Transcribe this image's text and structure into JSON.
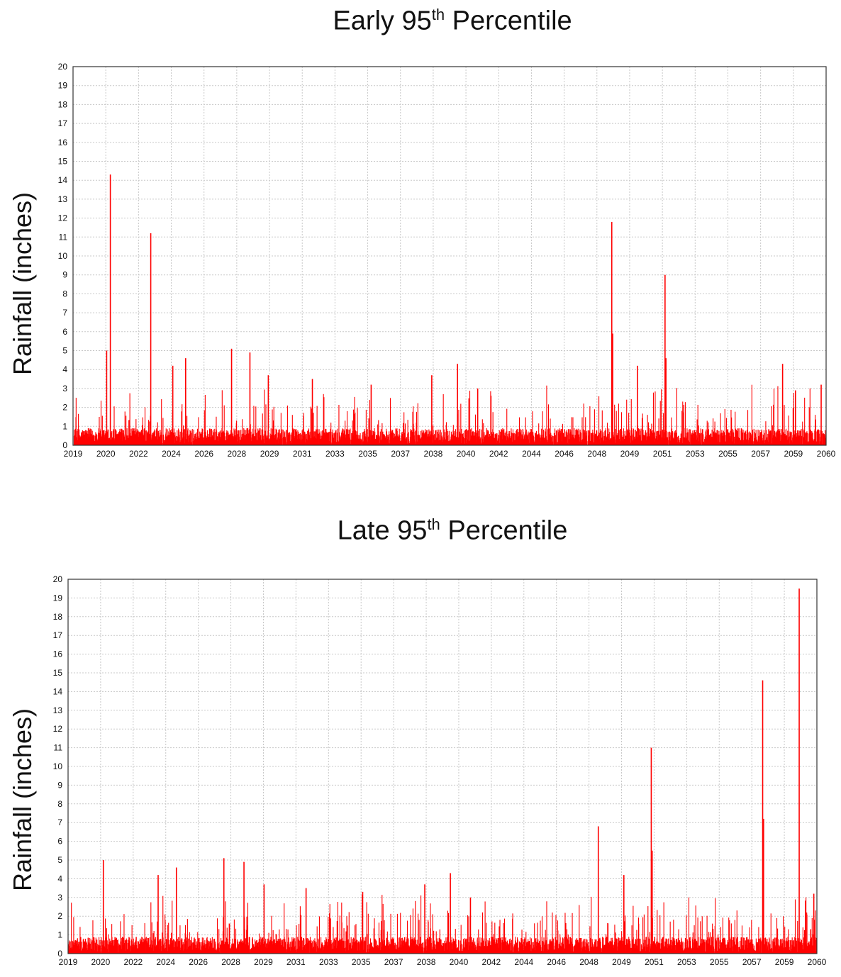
{
  "chart_data": [
    {
      "type": "bar",
      "title": "Early 95",
      "title_suffix": "th",
      "title_rest": " Percentile",
      "ylabel": "Rainfall (inches)",
      "xlabel": "",
      "ylim": [
        0,
        20
      ],
      "yticks": [
        0,
        1,
        2,
        3,
        4,
        5,
        6,
        7,
        8,
        9,
        10,
        11,
        12,
        13,
        14,
        15,
        16,
        17,
        18,
        19,
        20
      ],
      "xticks": [
        "2019",
        "2020",
        "2022",
        "2024",
        "2026",
        "2028",
        "2029",
        "2031",
        "2033",
        "2035",
        "2037",
        "2038",
        "2040",
        "2042",
        "2044",
        "2046",
        "2048",
        "2049",
        "2051",
        "2053",
        "2055",
        "2057",
        "2059",
        "2060"
      ],
      "xlim": [
        2019,
        2060
      ],
      "grid": true,
      "color": "#ff0000",
      "peaks": [
        {
          "x": 2020.8,
          "y": 5.0
        },
        {
          "x": 2021.0,
          "y": 14.3
        },
        {
          "x": 2023.2,
          "y": 11.2
        },
        {
          "x": 2024.4,
          "y": 4.2
        },
        {
          "x": 2025.1,
          "y": 4.6
        },
        {
          "x": 2027.6,
          "y": 5.1
        },
        {
          "x": 2028.6,
          "y": 4.9
        },
        {
          "x": 2029.6,
          "y": 3.7
        },
        {
          "x": 2032.0,
          "y": 3.5
        },
        {
          "x": 2035.2,
          "y": 3.2
        },
        {
          "x": 2038.5,
          "y": 3.7
        },
        {
          "x": 2039.9,
          "y": 4.3
        },
        {
          "x": 2041.0,
          "y": 3.0
        },
        {
          "x": 2048.3,
          "y": 11.8
        },
        {
          "x": 2048.35,
          "y": 5.9
        },
        {
          "x": 2049.7,
          "y": 4.2
        },
        {
          "x": 2051.2,
          "y": 9.0
        },
        {
          "x": 2051.25,
          "y": 4.6
        },
        {
          "x": 2057.6,
          "y": 4.3
        },
        {
          "x": 2058.3,
          "y": 2.9
        },
        {
          "x": 2059.7,
          "y": 3.2
        }
      ]
    },
    {
      "type": "bar",
      "title": "Late 95",
      "title_suffix": "th",
      "title_rest": " Percentile",
      "ylabel": "Rainfall (inches)",
      "xlabel": "",
      "ylim": [
        0,
        20
      ],
      "yticks": [
        0,
        1,
        2,
        3,
        4,
        5,
        6,
        7,
        8,
        9,
        10,
        11,
        12,
        13,
        14,
        15,
        16,
        17,
        18,
        19,
        20
      ],
      "xticks": [
        "2019",
        "2020",
        "2022",
        "2024",
        "2026",
        "2028",
        "2029",
        "2031",
        "2033",
        "2035",
        "2037",
        "2038",
        "2040",
        "2042",
        "2044",
        "2046",
        "2048",
        "2049",
        "2051",
        "2053",
        "2055",
        "2057",
        "2059",
        "2060"
      ],
      "xlim": [
        2019,
        2060
      ],
      "grid": true,
      "color": "#ff0000",
      "peaks": [
        {
          "x": 2020.9,
          "y": 5.0
        },
        {
          "x": 2023.9,
          "y": 4.2
        },
        {
          "x": 2024.9,
          "y": 4.6
        },
        {
          "x": 2027.5,
          "y": 5.1
        },
        {
          "x": 2028.6,
          "y": 4.9
        },
        {
          "x": 2029.7,
          "y": 3.7
        },
        {
          "x": 2032.0,
          "y": 3.5
        },
        {
          "x": 2035.1,
          "y": 3.3
        },
        {
          "x": 2038.5,
          "y": 3.7
        },
        {
          "x": 2039.9,
          "y": 4.3
        },
        {
          "x": 2041.0,
          "y": 3.0
        },
        {
          "x": 2048.0,
          "y": 6.8
        },
        {
          "x": 2049.4,
          "y": 4.2
        },
        {
          "x": 2050.9,
          "y": 11.0
        },
        {
          "x": 2050.95,
          "y": 5.5
        },
        {
          "x": 2057.0,
          "y": 14.6
        },
        {
          "x": 2057.05,
          "y": 7.2
        },
        {
          "x": 2059.0,
          "y": 19.5
        },
        {
          "x": 2059.8,
          "y": 3.2
        }
      ]
    }
  ]
}
